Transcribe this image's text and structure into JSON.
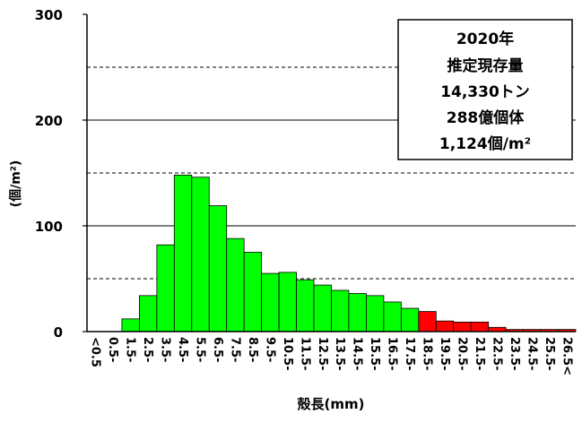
{
  "chart_data": {
    "type": "bar",
    "categories": [
      "<0.5",
      "0.5-",
      "1.5-",
      "2.5-",
      "3.5-",
      "4.5-",
      "5.5-",
      "6.5-",
      "7.5-",
      "8.5-",
      "9.5-",
      "10.5-",
      "11.5-",
      "12.5-",
      "13.5-",
      "14.5-",
      "15.5-",
      "16.5-",
      "17.5-",
      "18.5-",
      "19.5-",
      "20.5-",
      "21.5-",
      "22.5-",
      "23.5-",
      "24.5-",
      "25.5-",
      "26.5<"
    ],
    "values": [
      0,
      0,
      12,
      34,
      82,
      148,
      146,
      119,
      88,
      75,
      55,
      56,
      49,
      44,
      39,
      36,
      34,
      28,
      22,
      19,
      10,
      9,
      9,
      4,
      2,
      2,
      2,
      2
    ],
    "bar_colors": [
      "#00ff00",
      "#00ff00",
      "#00ff00",
      "#00ff00",
      "#00ff00",
      "#00ff00",
      "#00ff00",
      "#00ff00",
      "#00ff00",
      "#00ff00",
      "#00ff00",
      "#00ff00",
      "#00ff00",
      "#00ff00",
      "#00ff00",
      "#00ff00",
      "#00ff00",
      "#00ff00",
      "#00ff00",
      "#ff0000",
      "#ff0000",
      "#ff0000",
      "#ff0000",
      "#ff0000",
      "#ff0000",
      "#ff0000",
      "#ff0000",
      "#ff0000"
    ],
    "xlabel": "殻長(mm)",
    "ylabel": "(個/m²)",
    "ylim": [
      0,
      300
    ],
    "yticks": [
      "0",
      "100",
      "200",
      "300"
    ],
    "gridlines": {
      "solid": [
        100,
        200
      ],
      "dashed": [
        50,
        150,
        250
      ]
    },
    "legend": "none",
    "annotation": {
      "placement": "top-right",
      "lines": [
        "2020年",
        "推定現存量",
        "14,330トン",
        "288億個体",
        "1,124個/m²"
      ]
    }
  }
}
